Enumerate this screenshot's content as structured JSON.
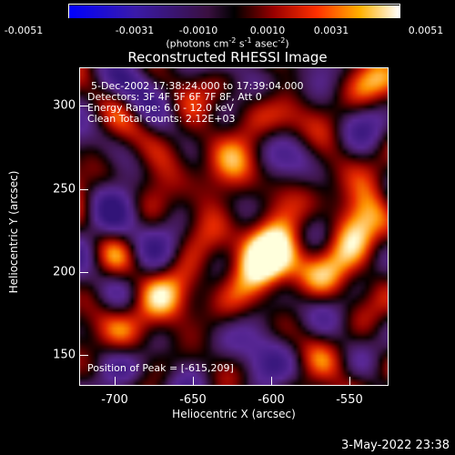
{
  "colorbar": {
    "ticks": [
      "-0.0051",
      "-0.0031",
      "-0.0010",
      "0.0010",
      "0.0031",
      "0.0051"
    ],
    "unit_main": "(photons cm",
    "unit_exp1": "-2",
    "unit_mid": " s",
    "unit_exp2": "-1",
    "unit_mid2": " asec",
    "unit_exp3": "-2",
    "unit_end": ")"
  },
  "title": "Reconstructed RHESSI Image",
  "annotations": {
    "time_range": "5-Dec-2002 17:38:24.000 to 17:39:04.000",
    "detectors": "Detectors: 3F 4F 5F 6F 7F 8F, Att 0",
    "energy": "Energy Range: 6.0 - 12.0 keV",
    "clean": "Clean     Total counts: 2.12E+03",
    "peak": "Position of Peak = [-615,209]"
  },
  "axes": {
    "xlabel": "Heliocentric X (arcsec)",
    "ylabel": "Heliocentric Y (arcsec)",
    "xticks": [
      "-700",
      "-650",
      "-600",
      "-550"
    ],
    "yticks": [
      "300",
      "250",
      "200",
      "150"
    ]
  },
  "timestamp": "3-May-2022 23:38",
  "colors": {
    "background": "#000000"
  }
}
